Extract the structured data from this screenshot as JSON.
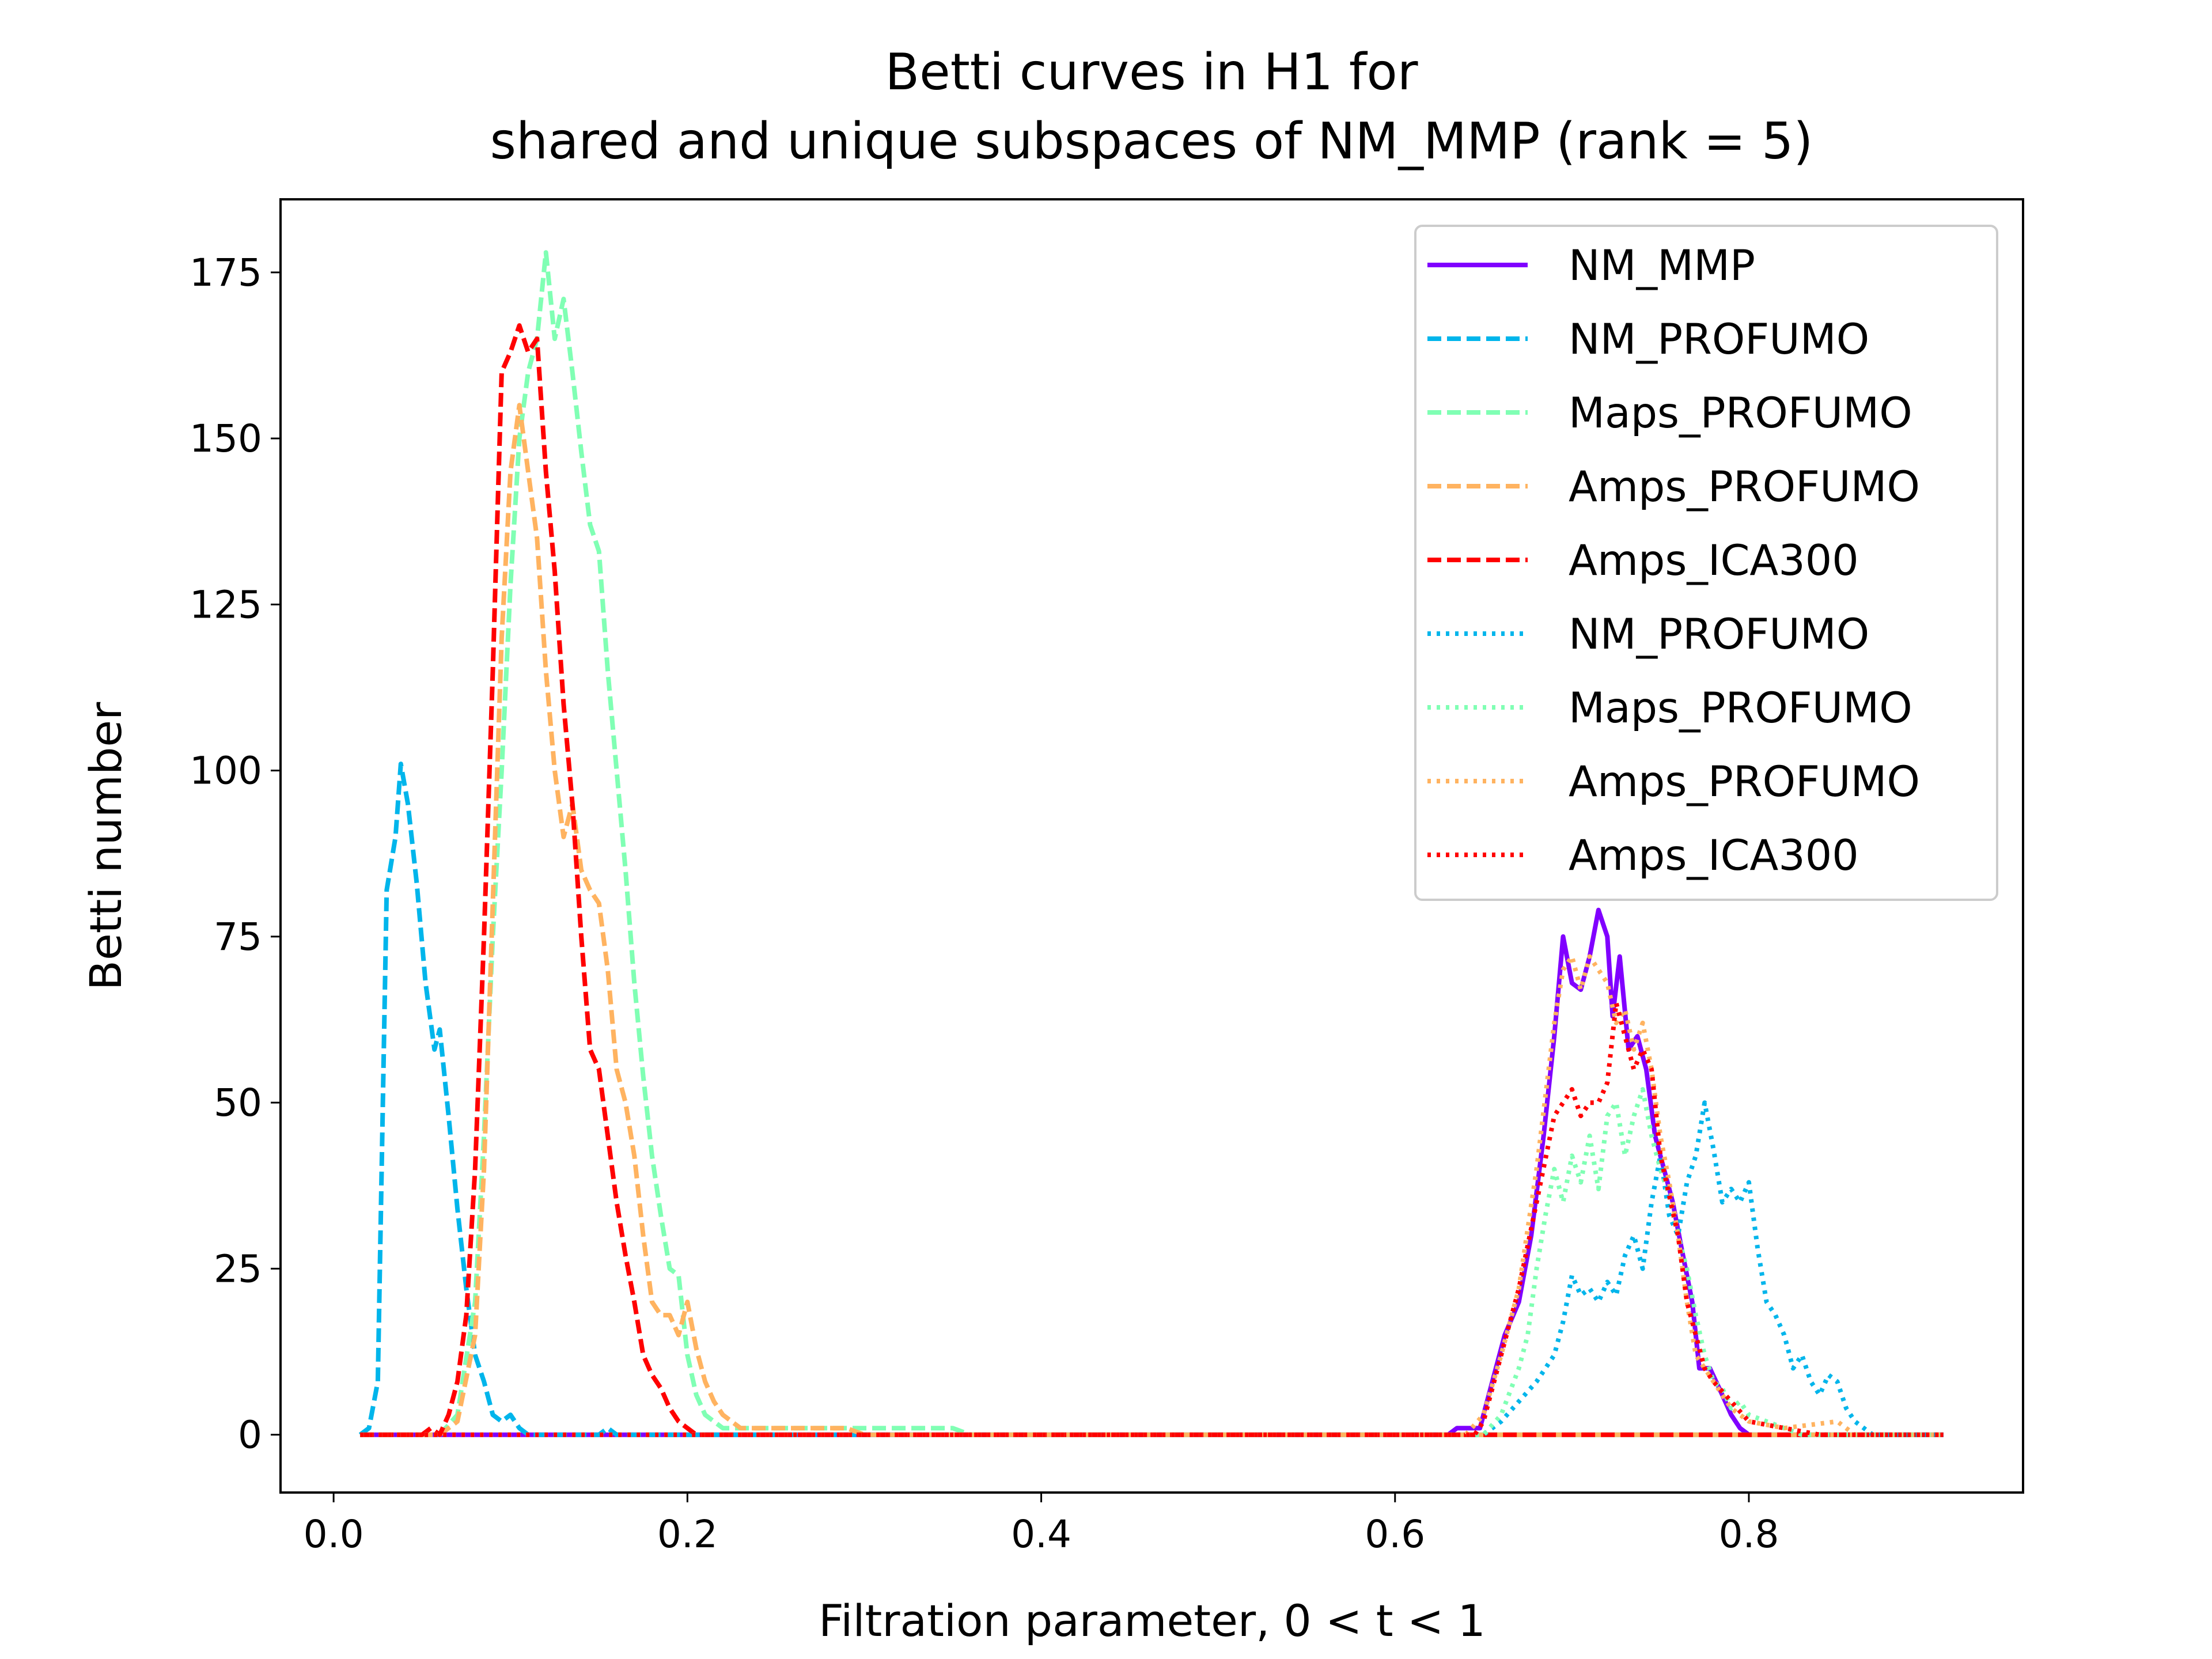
{
  "chart_data": {
    "type": "line",
    "title": "Betti curves in H1 for\nshared and unique subspaces of NM_MMP (rank = 5)",
    "title_lines": [
      "Betti curves in H1 for",
      "shared and unique subspaces of NM_MMP (rank = 5)"
    ],
    "xlabel": "Filtration parameter, 0 < t < 1",
    "ylabel": "Betti number",
    "xlim": [
      -0.03,
      0.955
    ],
    "ylim": [
      -8.7,
      186
    ],
    "xticks": [
      0.0,
      0.2,
      0.4,
      0.6,
      0.8
    ],
    "xtick_labels": [
      "0.0",
      "0.2",
      "0.4",
      "0.6",
      "0.8"
    ],
    "yticks": [
      0,
      25,
      50,
      75,
      100,
      125,
      150,
      175
    ],
    "ytick_labels": [
      "0",
      "25",
      "50",
      "75",
      "100",
      "125",
      "150",
      "175"
    ],
    "grid": false,
    "legend_position": "top-right",
    "series": [
      {
        "name": "NM_MMP",
        "style": "solid",
        "color": "#8000ff",
        "points": [
          [
            0.015,
            0
          ],
          [
            0.63,
            0
          ],
          [
            0.635,
            1
          ],
          [
            0.648,
            1
          ],
          [
            0.655,
            8
          ],
          [
            0.662,
            15
          ],
          [
            0.67,
            20
          ],
          [
            0.677,
            30
          ],
          [
            0.684,
            45
          ],
          [
            0.69,
            60
          ],
          [
            0.695,
            75
          ],
          [
            0.7,
            68
          ],
          [
            0.705,
            67
          ],
          [
            0.71,
            72
          ],
          [
            0.715,
            79
          ],
          [
            0.72,
            75
          ],
          [
            0.723,
            63
          ],
          [
            0.727,
            72
          ],
          [
            0.732,
            58
          ],
          [
            0.737,
            60
          ],
          [
            0.742,
            55
          ],
          [
            0.747,
            45
          ],
          [
            0.752,
            40
          ],
          [
            0.757,
            35
          ],
          [
            0.762,
            28
          ],
          [
            0.768,
            20
          ],
          [
            0.772,
            10
          ],
          [
            0.778,
            10
          ],
          [
            0.785,
            6
          ],
          [
            0.79,
            3
          ],
          [
            0.795,
            1
          ],
          [
            0.8,
            0
          ],
          [
            0.91,
            0
          ]
        ]
      },
      {
        "name": "NM_PROFUMO",
        "style": "dashed",
        "color": "#00b5eb",
        "points": [
          [
            0.015,
            0
          ],
          [
            0.02,
            1
          ],
          [
            0.025,
            8
          ],
          [
            0.03,
            82
          ],
          [
            0.035,
            90
          ],
          [
            0.038,
            101
          ],
          [
            0.042,
            95
          ],
          [
            0.047,
            83
          ],
          [
            0.052,
            68
          ],
          [
            0.057,
            58
          ],
          [
            0.06,
            61
          ],
          [
            0.065,
            48
          ],
          [
            0.07,
            34
          ],
          [
            0.075,
            22
          ],
          [
            0.08,
            12
          ],
          [
            0.085,
            8
          ],
          [
            0.09,
            3
          ],
          [
            0.095,
            2
          ],
          [
            0.1,
            3
          ],
          [
            0.105,
            1
          ],
          [
            0.11,
            0
          ],
          [
            0.15,
            0
          ],
          [
            0.155,
            1
          ],
          [
            0.16,
            0
          ],
          [
            0.91,
            0
          ]
        ]
      },
      {
        "name": "Maps_PROFUMO",
        "style": "dashed",
        "color": "#80ffb4",
        "points": [
          [
            0.015,
            0
          ],
          [
            0.06,
            0
          ],
          [
            0.07,
            3
          ],
          [
            0.08,
            20
          ],
          [
            0.085,
            45
          ],
          [
            0.09,
            75
          ],
          [
            0.095,
            100
          ],
          [
            0.1,
            128
          ],
          [
            0.105,
            150
          ],
          [
            0.11,
            160
          ],
          [
            0.115,
            165
          ],
          [
            0.12,
            178
          ],
          [
            0.125,
            165
          ],
          [
            0.13,
            171
          ],
          [
            0.135,
            160
          ],
          [
            0.14,
            148
          ],
          [
            0.145,
            137
          ],
          [
            0.15,
            133
          ],
          [
            0.155,
            115
          ],
          [
            0.16,
            100
          ],
          [
            0.165,
            85
          ],
          [
            0.17,
            68
          ],
          [
            0.175,
            54
          ],
          [
            0.18,
            42
          ],
          [
            0.185,
            33
          ],
          [
            0.19,
            25
          ],
          [
            0.195,
            24
          ],
          [
            0.2,
            12
          ],
          [
            0.205,
            6
          ],
          [
            0.21,
            3
          ],
          [
            0.215,
            2
          ],
          [
            0.22,
            1
          ],
          [
            0.35,
            1
          ],
          [
            0.36,
            0
          ],
          [
            0.91,
            0
          ]
        ]
      },
      {
        "name": "Amps_PROFUMO",
        "style": "dashed",
        "color": "#ffb360",
        "points": [
          [
            0.015,
            0
          ],
          [
            0.06,
            0
          ],
          [
            0.07,
            2
          ],
          [
            0.08,
            15
          ],
          [
            0.085,
            40
          ],
          [
            0.09,
            80
          ],
          [
            0.095,
            120
          ],
          [
            0.1,
            145
          ],
          [
            0.105,
            155
          ],
          [
            0.11,
            145
          ],
          [
            0.115,
            135
          ],
          [
            0.12,
            115
          ],
          [
            0.125,
            100
          ],
          [
            0.13,
            90
          ],
          [
            0.135,
            95
          ],
          [
            0.14,
            85
          ],
          [
            0.145,
            82
          ],
          [
            0.15,
            80
          ],
          [
            0.155,
            70
          ],
          [
            0.16,
            55
          ],
          [
            0.165,
            50
          ],
          [
            0.17,
            42
          ],
          [
            0.175,
            30
          ],
          [
            0.18,
            20
          ],
          [
            0.185,
            18
          ],
          [
            0.19,
            18
          ],
          [
            0.195,
            15
          ],
          [
            0.2,
            20
          ],
          [
            0.205,
            13
          ],
          [
            0.21,
            8
          ],
          [
            0.215,
            5
          ],
          [
            0.22,
            3
          ],
          [
            0.225,
            2
          ],
          [
            0.23,
            1
          ],
          [
            0.29,
            1
          ],
          [
            0.3,
            0
          ],
          [
            0.91,
            0
          ]
        ]
      },
      {
        "name": "Amps_ICA300",
        "style": "dashed",
        "color": "#ff0000",
        "points": [
          [
            0.015,
            0
          ],
          [
            0.05,
            0
          ],
          [
            0.055,
            1
          ],
          [
            0.06,
            0
          ],
          [
            0.065,
            3
          ],
          [
            0.07,
            8
          ],
          [
            0.075,
            18
          ],
          [
            0.08,
            40
          ],
          [
            0.085,
            75
          ],
          [
            0.09,
            115
          ],
          [
            0.095,
            160
          ],
          [
            0.1,
            163
          ],
          [
            0.105,
            167
          ],
          [
            0.11,
            163
          ],
          [
            0.115,
            165
          ],
          [
            0.12,
            145
          ],
          [
            0.125,
            130
          ],
          [
            0.13,
            110
          ],
          [
            0.135,
            95
          ],
          [
            0.14,
            75
          ],
          [
            0.145,
            58
          ],
          [
            0.15,
            55
          ],
          [
            0.155,
            45
          ],
          [
            0.16,
            35
          ],
          [
            0.165,
            27
          ],
          [
            0.17,
            20
          ],
          [
            0.175,
            12
          ],
          [
            0.18,
            9
          ],
          [
            0.185,
            7
          ],
          [
            0.19,
            4
          ],
          [
            0.195,
            2
          ],
          [
            0.2,
            1
          ],
          [
            0.205,
            0
          ],
          [
            0.91,
            0
          ]
        ]
      },
      {
        "name": "NM_PROFUMO",
        "style": "dotted",
        "color": "#00b5eb",
        "points": [
          [
            0.015,
            0
          ],
          [
            0.65,
            0
          ],
          [
            0.66,
            2
          ],
          [
            0.67,
            5
          ],
          [
            0.68,
            8
          ],
          [
            0.69,
            12
          ],
          [
            0.695,
            17
          ],
          [
            0.7,
            24
          ],
          [
            0.705,
            21
          ],
          [
            0.71,
            22
          ],
          [
            0.715,
            20
          ],
          [
            0.72,
            23
          ],
          [
            0.725,
            21
          ],
          [
            0.73,
            27
          ],
          [
            0.735,
            30
          ],
          [
            0.74,
            25
          ],
          [
            0.745,
            35
          ],
          [
            0.75,
            42
          ],
          [
            0.755,
            33
          ],
          [
            0.76,
            30
          ],
          [
            0.765,
            38
          ],
          [
            0.77,
            42
          ],
          [
            0.775,
            50
          ],
          [
            0.78,
            43
          ],
          [
            0.785,
            35
          ],
          [
            0.79,
            37
          ],
          [
            0.795,
            35
          ],
          [
            0.8,
            38
          ],
          [
            0.805,
            28
          ],
          [
            0.81,
            20
          ],
          [
            0.815,
            18
          ],
          [
            0.82,
            15
          ],
          [
            0.825,
            10
          ],
          [
            0.83,
            12
          ],
          [
            0.835,
            8
          ],
          [
            0.84,
            6
          ],
          [
            0.845,
            9
          ],
          [
            0.85,
            8
          ],
          [
            0.855,
            4
          ],
          [
            0.86,
            2
          ],
          [
            0.865,
            1
          ],
          [
            0.87,
            0
          ],
          [
            0.91,
            0
          ]
        ]
      },
      {
        "name": "Maps_PROFUMO",
        "style": "dotted",
        "color": "#80ffb4",
        "points": [
          [
            0.015,
            0
          ],
          [
            0.65,
            0
          ],
          [
            0.66,
            3
          ],
          [
            0.67,
            10
          ],
          [
            0.675,
            15
          ],
          [
            0.68,
            25
          ],
          [
            0.685,
            33
          ],
          [
            0.69,
            40
          ],
          [
            0.695,
            35
          ],
          [
            0.7,
            42
          ],
          [
            0.705,
            38
          ],
          [
            0.71,
            45
          ],
          [
            0.715,
            37
          ],
          [
            0.72,
            48
          ],
          [
            0.725,
            50
          ],
          [
            0.73,
            42
          ],
          [
            0.735,
            48
          ],
          [
            0.74,
            52
          ],
          [
            0.745,
            45
          ],
          [
            0.75,
            40
          ],
          [
            0.755,
            36
          ],
          [
            0.76,
            30
          ],
          [
            0.765,
            25
          ],
          [
            0.77,
            18
          ],
          [
            0.775,
            12
          ],
          [
            0.78,
            8
          ],
          [
            0.785,
            7
          ],
          [
            0.79,
            4
          ],
          [
            0.795,
            5
          ],
          [
            0.8,
            3
          ],
          [
            0.81,
            2
          ],
          [
            0.82,
            1
          ],
          [
            0.83,
            0
          ],
          [
            0.91,
            0
          ]
        ]
      },
      {
        "name": "Amps_PROFUMO",
        "style": "dotted",
        "color": "#ffb360",
        "points": [
          [
            0.015,
            0
          ],
          [
            0.64,
            0
          ],
          [
            0.65,
            3
          ],
          [
            0.66,
            12
          ],
          [
            0.67,
            22
          ],
          [
            0.68,
            40
          ],
          [
            0.69,
            62
          ],
          [
            0.695,
            70
          ],
          [
            0.7,
            72
          ],
          [
            0.705,
            67
          ],
          [
            0.71,
            72
          ],
          [
            0.715,
            70
          ],
          [
            0.72,
            68
          ],
          [
            0.725,
            62
          ],
          [
            0.73,
            64
          ],
          [
            0.735,
            58
          ],
          [
            0.74,
            62
          ],
          [
            0.745,
            55
          ],
          [
            0.75,
            45
          ],
          [
            0.755,
            38
          ],
          [
            0.76,
            30
          ],
          [
            0.765,
            20
          ],
          [
            0.77,
            12
          ],
          [
            0.78,
            8
          ],
          [
            0.79,
            4
          ],
          [
            0.8,
            2
          ],
          [
            0.82,
            1
          ],
          [
            0.85,
            2
          ],
          [
            0.86,
            0
          ],
          [
            0.91,
            0
          ]
        ]
      },
      {
        "name": "Amps_ICA300",
        "style": "dotted",
        "color": "#ff0000",
        "points": [
          [
            0.015,
            0
          ],
          [
            0.645,
            0
          ],
          [
            0.65,
            2
          ],
          [
            0.66,
            12
          ],
          [
            0.67,
            22
          ],
          [
            0.68,
            35
          ],
          [
            0.69,
            48
          ],
          [
            0.7,
            52
          ],
          [
            0.705,
            48
          ],
          [
            0.71,
            50
          ],
          [
            0.715,
            50
          ],
          [
            0.72,
            53
          ],
          [
            0.725,
            65
          ],
          [
            0.73,
            60
          ],
          [
            0.735,
            55
          ],
          [
            0.74,
            58
          ],
          [
            0.745,
            55
          ],
          [
            0.75,
            42
          ],
          [
            0.755,
            36
          ],
          [
            0.76,
            30
          ],
          [
            0.765,
            20
          ],
          [
            0.77,
            15
          ],
          [
            0.775,
            10
          ],
          [
            0.78,
            8
          ],
          [
            0.79,
            5
          ],
          [
            0.8,
            2
          ],
          [
            0.82,
            1
          ],
          [
            0.84,
            0
          ],
          [
            0.91,
            0
          ]
        ]
      }
    ]
  }
}
